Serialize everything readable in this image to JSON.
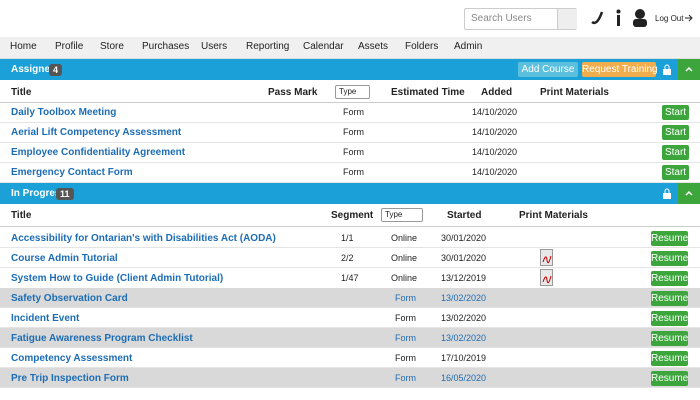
{
  "header": {
    "search_placeholder": "Search Users",
    "logout": "Log Out"
  },
  "nav": [
    "Home",
    "Profile",
    "Store",
    "Purchases",
    "Users",
    "Reporting",
    "Calendar",
    "Assets",
    "Folders",
    "Admin"
  ],
  "assigned": {
    "title": "Assigned",
    "count": "4",
    "buttons": [
      "Add Course",
      "Request Training"
    ],
    "columns": {
      "title": "Title",
      "pass_mark": "Pass Mark",
      "type": "Type",
      "estimated_time": "Estimated Time",
      "added": "Added",
      "print_materials": "Print Materials"
    },
    "rows": [
      {
        "title": "Daily Toolbox Meeting",
        "type": "Form",
        "added": "14/10/2020",
        "action": "Start"
      },
      {
        "title": "Aerial Lift Competency Assessment",
        "type": "Form",
        "added": "14/10/2020",
        "action": "Start"
      },
      {
        "title": "Employee Confidentiality Agreement",
        "type": "Form",
        "added": "14/10/2020",
        "action": "Start"
      },
      {
        "title": "Emergency Contact Form",
        "type": "Form",
        "added": "14/10/2020",
        "action": "Start"
      }
    ]
  },
  "in_progress": {
    "title": "In Progress",
    "count": "11",
    "columns": {
      "title": "Title",
      "segment": "Segment",
      "type": "Type",
      "started": "Started",
      "print_materials": "Print Materials"
    },
    "rows": [
      {
        "title": "Accessibility for Ontarian's with Disabilities Act (AODA)",
        "segment": "1/1",
        "type": "Online",
        "started": "30/01/2020",
        "action": "Resume",
        "highlight": false,
        "pdf": false
      },
      {
        "title": "Course Admin Tutorial",
        "segment": "2/2",
        "type": "Online",
        "started": "30/01/2020",
        "action": "Resume",
        "highlight": false,
        "pdf": true
      },
      {
        "title": "System How to Guide (Client Admin Tutorial)",
        "segment": "1/47",
        "type": "Online",
        "started": "13/12/2019",
        "action": "Resume",
        "highlight": false,
        "pdf": true
      },
      {
        "title": "Safety Observation Card",
        "type": "Form",
        "started": "13/02/2020",
        "action": "Resume",
        "highlight": true,
        "pdf": false
      },
      {
        "title": "Incident Event",
        "type": "Form",
        "started": "13/02/2020",
        "action": "Resume",
        "highlight": false,
        "pdf": false
      },
      {
        "title": "Fatigue Awareness Program Checklist",
        "type": "Form",
        "started": "13/02/2020",
        "action": "Resume",
        "highlight": true,
        "pdf": false
      },
      {
        "title": "Competency Assessment",
        "type": "Form",
        "started": "17/10/2019",
        "action": "Resume",
        "highlight": false,
        "pdf": false
      },
      {
        "title": "Pre Trip Inspection Form",
        "type": "Form",
        "started": "16/05/2020",
        "action": "Resume",
        "highlight": true,
        "pdf": false
      }
    ]
  }
}
